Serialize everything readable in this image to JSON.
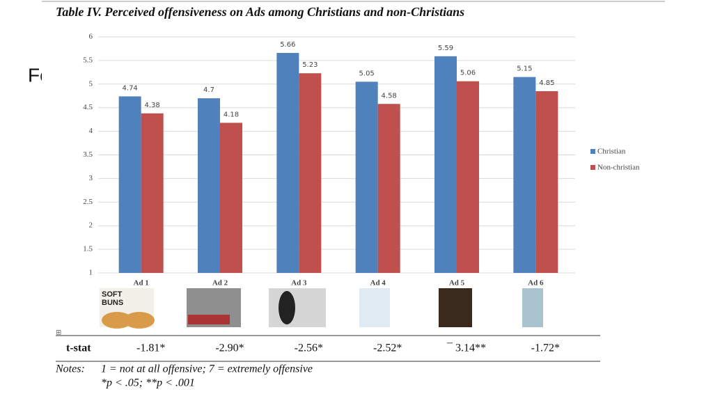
{
  "background_text": "Fo",
  "chart_data": {
    "type": "bar",
    "title": "Table IV. Perceived offensiveness on Ads among Christians and non-Christians",
    "categories": [
      "Ad 1",
      "Ad 2",
      "Ad 3",
      "Ad 4",
      "Ad 5",
      "Ad 6"
    ],
    "series": [
      {
        "name": "Christian",
        "color": "#4f81bd",
        "values": [
          4.74,
          4.7,
          5.66,
          5.05,
          5.59,
          5.15
        ]
      },
      {
        "name": "Non-christian",
        "color": "#c0504d",
        "values": [
          4.38,
          4.18,
          5.23,
          4.58,
          5.06,
          4.85
        ]
      }
    ],
    "ylim": [
      1,
      6
    ],
    "yticks": [
      1,
      1.5,
      2,
      2.5,
      3,
      3.5,
      4,
      4.5,
      5,
      5.5,
      6
    ],
    "grid": true,
    "legend": "right"
  },
  "ad_image_text": [
    "SOFT",
    "BUNS"
  ],
  "t_stat": {
    "label": "t-stat",
    "values": [
      "-1.81*",
      "-2.90*",
      "-2.56*",
      "-2.52*",
      "¯ 3.14**",
      "-1.72*"
    ]
  },
  "notes": {
    "label": "Notes:",
    "lines": [
      "1 = not at all offensive; 7 = extremely offensive",
      "*p < .05; **p < .001"
    ]
  }
}
